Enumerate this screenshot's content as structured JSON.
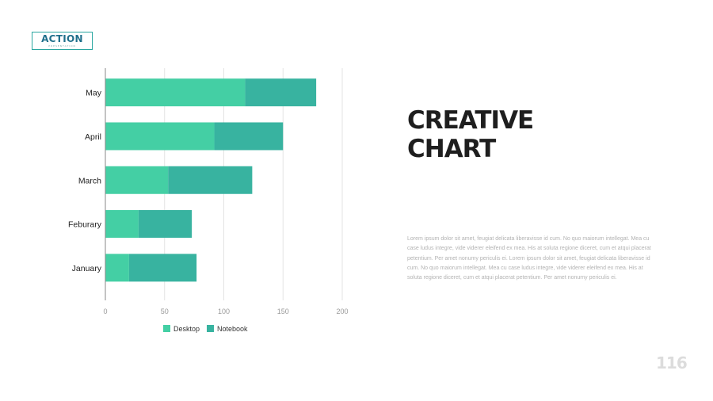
{
  "logo": {
    "main": "ACTION",
    "sub": "PRESENTATION"
  },
  "heading": {
    "line1": "CREATIVE",
    "line2": "CHART"
  },
  "body_text": "Lorem ipsum dolor sit amet, feugiat delicata liberavisse id cum. No quo maiorum intellegat. Mea cu case ludus integre, vide viderer eleifend ex mea. His at soluta regione diceret, cum et atqui placerat petentium. Per amet nonumy periculis ei. Lorem ipsum dolor sit amet, feugiat delicata liberavisse id cum. No quo maiorum intellegat. Mea cu case ludus integre, vide viderer eleifend ex mea. His at soluta regione diceret, cum et atqui placerat petentium. Per amet nonumy periculis ei.",
  "page_number": "116",
  "colors": {
    "desktop": "#44cfa4",
    "notebook": "#38b3a0",
    "gridline": "#e3e3e3",
    "axis": "#888888"
  },
  "chart_data": {
    "type": "bar",
    "orientation": "horizontal",
    "stacked": true,
    "categories": [
      "May",
      "April",
      "March",
      "Feburary",
      "January"
    ],
    "series": [
      {
        "name": "Desktop",
        "values": [
          118,
          92,
          53,
          28,
          20
        ]
      },
      {
        "name": "Notebook",
        "values": [
          60,
          58,
          71,
          45,
          57
        ]
      }
    ],
    "xlim": [
      0,
      200
    ],
    "xticks": [
      0,
      50,
      100,
      150,
      200
    ],
    "grid": true,
    "legend_position": "bottom"
  }
}
